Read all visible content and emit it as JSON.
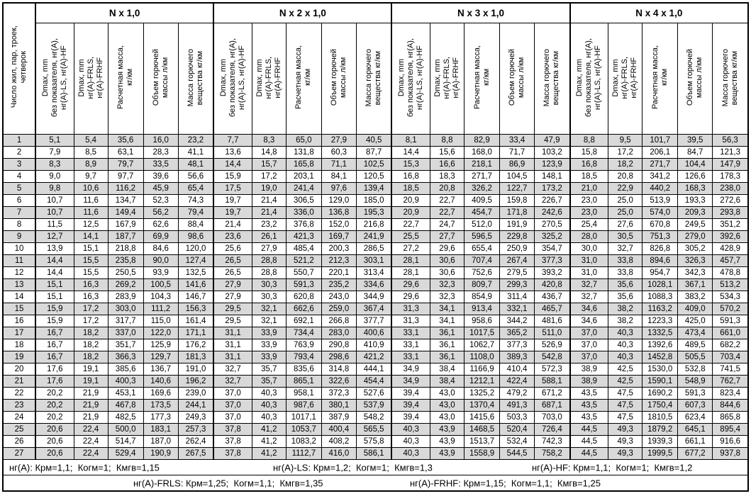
{
  "table": {
    "corner_header": "Число жил, пар, троек,\nчетверок",
    "groups": [
      {
        "title": "N x 1,0"
      },
      {
        "title": "N x 2 x 1,0"
      },
      {
        "title": "N x 3 x 1,0"
      },
      {
        "title": "N x 4 x 1,0"
      }
    ],
    "sub_headers": [
      "Dmax, mm\nбез показателя, нг(А),\nнг(А)-LS, нг(А)-HF",
      "Dmax, mm\nнг(А)-FRLS,\nнг(А)-FRHF",
      "Расчетная масса,\nкг/км",
      "Объем горючей\nмассы л/км",
      "Масса горючего\nвещества кг/км"
    ],
    "rows": [
      [
        "1",
        "5,1",
        "5,4",
        "35,6",
        "16,0",
        "23,2",
        "7,7",
        "8,3",
        "65,0",
        "27,9",
        "40,5",
        "8,1",
        "8,8",
        "82,9",
        "33,4",
        "47,9",
        "8,8",
        "9,5",
        "101,7",
        "39,5",
        "56,3"
      ],
      [
        "2",
        "7,9",
        "8,5",
        "63,1",
        "28,3",
        "41,1",
        "13,6",
        "14,8",
        "131,8",
        "60,3",
        "87,7",
        "14,4",
        "15,6",
        "168,0",
        "71,7",
        "103,2",
        "15,8",
        "17,2",
        "206,1",
        "84,7",
        "121,3"
      ],
      [
        "3",
        "8,3",
        "8,9",
        "79,7",
        "33,5",
        "48,1",
        "14,4",
        "15,7",
        "165,8",
        "71,1",
        "102,5",
        "15,3",
        "16,6",
        "218,1",
        "86,9",
        "123,9",
        "16,8",
        "18,2",
        "271,7",
        "104,4",
        "147,9"
      ],
      [
        "4",
        "9,0",
        "9,7",
        "97,7",
        "39,6",
        "56,6",
        "15,9",
        "17,2",
        "203,1",
        "84,1",
        "120,5",
        "16,8",
        "18,3",
        "271,7",
        "104,5",
        "148,1",
        "18,5",
        "20,8",
        "341,2",
        "126,6",
        "178,3"
      ],
      [
        "5",
        "9,8",
        "10,6",
        "116,2",
        "45,9",
        "65,4",
        "17,5",
        "19,0",
        "241,4",
        "97,6",
        "139,4",
        "18,5",
        "20,8",
        "326,2",
        "122,7",
        "173,2",
        "21,0",
        "22,9",
        "440,2",
        "168,3",
        "238,0"
      ],
      [
        "6",
        "10,7",
        "11,6",
        "134,7",
        "52,3",
        "74,3",
        "19,7",
        "21,4",
        "306,5",
        "129,0",
        "185,0",
        "20,9",
        "22,7",
        "409,5",
        "159,8",
        "226,7",
        "23,0",
        "25,0",
        "513,9",
        "193,3",
        "272,6"
      ],
      [
        "7",
        "10,7",
        "11,6",
        "149,4",
        "56,2",
        "79,4",
        "19,7",
        "21,4",
        "336,0",
        "136,8",
        "195,3",
        "20,9",
        "22,7",
        "454,7",
        "171,8",
        "242,6",
        "23,0",
        "25,0",
        "574,0",
        "209,3",
        "293,8"
      ],
      [
        "8",
        "11,5",
        "12,5",
        "167,9",
        "62,6",
        "88,4",
        "21,4",
        "23,2",
        "376,8",
        "152,0",
        "216,8",
        "22,7",
        "24,7",
        "512,0",
        "191,9",
        "270,5",
        "25,4",
        "27,6",
        "670,8",
        "249,5",
        "351,2"
      ],
      [
        "9",
        "12,7",
        "14,1",
        "187,7",
        "69,9",
        "98,6",
        "23,6",
        "26,1",
        "421,3",
        "169,7",
        "241,9",
        "25,5",
        "27,7",
        "596,5",
        "229,8",
        "325,2",
        "28,0",
        "30,5",
        "751,3",
        "279,0",
        "392,6"
      ],
      [
        "10",
        "13,9",
        "15,1",
        "218,8",
        "84,6",
        "120,0",
        "25,6",
        "27,9",
        "485,4",
        "200,3",
        "286,5",
        "27,2",
        "29,6",
        "655,4",
        "250,9",
        "354,7",
        "30,0",
        "32,7",
        "826,8",
        "305,2",
        "428,9"
      ],
      [
        "11",
        "14,4",
        "15,5",
        "235,8",
        "90,0",
        "127,4",
        "26,5",
        "28,8",
        "521,2",
        "212,3",
        "303,1",
        "28,1",
        "30,6",
        "707,4",
        "267,4",
        "377,3",
        "31,0",
        "33,8",
        "894,6",
        "326,3",
        "457,7"
      ],
      [
        "12",
        "14,4",
        "15,5",
        "250,5",
        "93,9",
        "132,5",
        "26,5",
        "28,8",
        "550,7",
        "220,1",
        "313,4",
        "28,1",
        "30,6",
        "752,6",
        "279,5",
        "393,2",
        "31,0",
        "33,8",
        "954,7",
        "342,3",
        "478,8"
      ],
      [
        "13",
        "15,1",
        "16,3",
        "269,2",
        "100,5",
        "141,6",
        "27,9",
        "30,3",
        "591,3",
        "235,2",
        "334,6",
        "29,6",
        "32,3",
        "809,7",
        "299,3",
        "420,8",
        "32,7",
        "35,6",
        "1028,1",
        "367,1",
        "513,2"
      ],
      [
        "14",
        "15,1",
        "16,3",
        "283,9",
        "104,3",
        "146,7",
        "27,9",
        "30,3",
        "620,8",
        "243,0",
        "344,9",
        "29,6",
        "32,3",
        "854,9",
        "311,4",
        "436,7",
        "32,7",
        "35,6",
        "1088,3",
        "383,2",
        "534,3"
      ],
      [
        "15",
        "15,9",
        "17,2",
        "303,0",
        "111,2",
        "156,3",
        "29,5",
        "32,1",
        "662,6",
        "259,0",
        "367,4",
        "31,3",
        "34,1",
        "913,4",
        "332,1",
        "465,7",
        "34,6",
        "38,2",
        "1163,2",
        "409,0",
        "570,2"
      ],
      [
        "16",
        "15,9",
        "17,2",
        "317,7",
        "115,0",
        "161,4",
        "29,5",
        "32,1",
        "692,1",
        "266,8",
        "377,7",
        "31,3",
        "34,1",
        "958,6",
        "344,2",
        "481,6",
        "34,6",
        "38,2",
        "1223,3",
        "425,0",
        "591,3"
      ],
      [
        "17",
        "16,7",
        "18,2",
        "337,0",
        "122,0",
        "171,1",
        "31,1",
        "33,9",
        "734,4",
        "283,0",
        "400,6",
        "33,1",
        "36,1",
        "1017,5",
        "365,2",
        "511,0",
        "37,0",
        "40,3",
        "1332,5",
        "473,4",
        "661,0"
      ],
      [
        "18",
        "16,7",
        "18,2",
        "351,7",
        "125,9",
        "176,2",
        "31,1",
        "33,9",
        "763,9",
        "290,8",
        "410,9",
        "33,1",
        "36,1",
        "1062,7",
        "377,3",
        "526,9",
        "37,0",
        "40,3",
        "1392,6",
        "489,5",
        "682,2"
      ],
      [
        "19",
        "16,7",
        "18,2",
        "366,3",
        "129,7",
        "181,3",
        "31,1",
        "33,9",
        "793,4",
        "298,6",
        "421,2",
        "33,1",
        "36,1",
        "1108,0",
        "389,3",
        "542,8",
        "37,0",
        "40,3",
        "1452,8",
        "505,5",
        "703,4"
      ],
      [
        "20",
        "17,6",
        "19,1",
        "385,6",
        "136,7",
        "191,0",
        "32,7",
        "35,7",
        "835,6",
        "314,8",
        "444,1",
        "34,9",
        "38,4",
        "1166,9",
        "410,4",
        "572,3",
        "38,9",
        "42,5",
        "1530,0",
        "532,8",
        "741,5"
      ],
      [
        "21",
        "17,6",
        "19,1",
        "400,3",
        "140,6",
        "196,2",
        "32,7",
        "35,7",
        "865,1",
        "322,6",
        "454,4",
        "34,9",
        "38,4",
        "1212,1",
        "422,4",
        "588,1",
        "38,9",
        "42,5",
        "1590,1",
        "548,9",
        "762,7"
      ],
      [
        "22",
        "20,2",
        "21,9",
        "453,1",
        "169,6",
        "239,0",
        "37,0",
        "40,3",
        "958,1",
        "372,3",
        "527,6",
        "39,4",
        "43,0",
        "1325,2",
        "479,2",
        "671,2",
        "43,5",
        "47,5",
        "1690,2",
        "591,3",
        "823,4"
      ],
      [
        "23",
        "20,2",
        "21,9",
        "467,8",
        "173,5",
        "244,1",
        "37,0",
        "40,3",
        "987,6",
        "380,1",
        "537,9",
        "39,4",
        "43,0",
        "1370,4",
        "491,3",
        "687,1",
        "43,5",
        "47,5",
        "1750,4",
        "607,3",
        "844,6"
      ],
      [
        "24",
        "20,2",
        "21,9",
        "482,5",
        "177,3",
        "249,3",
        "37,0",
        "40,3",
        "1017,1",
        "387,9",
        "548,2",
        "39,4",
        "43,0",
        "1415,6",
        "503,3",
        "703,0",
        "43,5",
        "47,5",
        "1810,5",
        "623,4",
        "865,8"
      ],
      [
        "25",
        "20,6",
        "22,4",
        "500,0",
        "183,1",
        "257,3",
        "37,8",
        "41,2",
        "1053,7",
        "400,4",
        "565,5",
        "40,3",
        "43,9",
        "1468,5",
        "520,4",
        "726,4",
        "44,5",
        "49,3",
        "1879,2",
        "645,1",
        "895,4"
      ],
      [
        "26",
        "20,6",
        "22,4",
        "514,7",
        "187,0",
        "262,4",
        "37,8",
        "41,2",
        "1083,2",
        "408,2",
        "575,8",
        "40,3",
        "43,9",
        "1513,7",
        "532,4",
        "742,3",
        "44,5",
        "49,3",
        "1939,3",
        "661,1",
        "916,6"
      ],
      [
        "27",
        "20,6",
        "22,4",
        "529,4",
        "190,9",
        "267,5",
        "37,8",
        "41,2",
        "1112,7",
        "416,0",
        "586,1",
        "40,3",
        "43,9",
        "1558,9",
        "544,5",
        "758,2",
        "44,5",
        "49,3",
        "1999,5",
        "677,2",
        "937,8"
      ]
    ],
    "footnotes": {
      "row1": [
        {
          "text": "нг(А): Крм=1,1;  Когм=1;  Кмгв=1,15"
        },
        {
          "text": "нг(А)-LS: Крм=1,2;  Когм=1;  Кмгв=1,3"
        },
        {
          "text": "нг(А)-HF: Крм=1,1;  Когм=1;  Кмгв=1,2"
        }
      ],
      "row2": [
        {
          "text": "нг(А)-FRLS: Крм=1,25;  Когм=1,1;  Кмгв=1,35"
        },
        {
          "text": "нг(А)-FRHF: Крм=1,15;  Когм=1,1;  Кмгв=1,25"
        }
      ]
    },
    "colors": {
      "shaded_row": "#d9d9d9",
      "border": "#000000"
    }
  }
}
